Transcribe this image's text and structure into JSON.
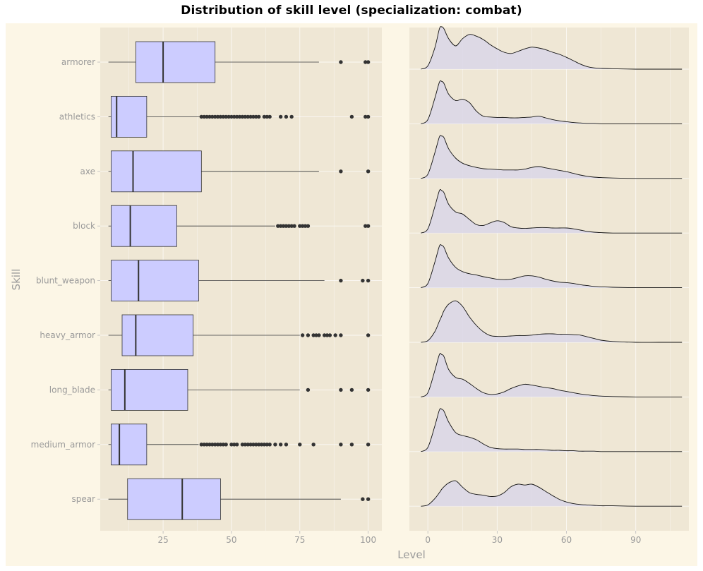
{
  "chart_data": {
    "type": "box+ridgeline",
    "title": "Distribution of skill level (specialization: combat)",
    "xlabel": "Level",
    "ylabel": "Skill",
    "categories": [
      "armorer",
      "athletics",
      "axe",
      "block",
      "blunt_weapon",
      "heavy_armor",
      "long_blade",
      "medium_armor",
      "spear"
    ],
    "boxplot": {
      "xlim": [
        2,
        105
      ],
      "xticks": [
        25,
        50,
        75,
        100
      ],
      "stats": [
        {
          "skill": "armorer",
          "whisker_low": 5,
          "q1": 15,
          "median": 25,
          "q3": 44,
          "whisker_high": 82,
          "outliers": [
            90,
            99,
            100
          ]
        },
        {
          "skill": "athletics",
          "whisker_low": 5,
          "q1": 6,
          "median": 8,
          "q3": 19,
          "whisker_high": 39,
          "outliers": [
            39,
            40,
            41,
            42,
            43,
            44,
            45,
            46,
            47,
            48,
            49,
            50,
            51,
            52,
            53,
            54,
            55,
            56,
            57,
            58,
            59,
            60,
            62,
            63,
            64,
            68,
            70,
            72,
            94,
            99,
            100
          ]
        },
        {
          "skill": "axe",
          "whisker_low": 5,
          "q1": 6,
          "median": 14,
          "q3": 39,
          "whisker_high": 82,
          "outliers": [
            90,
            100
          ]
        },
        {
          "skill": "block",
          "whisker_low": 5,
          "q1": 6,
          "median": 13,
          "q3": 30,
          "whisker_high": 66,
          "outliers": [
            67,
            68,
            69,
            70,
            71,
            72,
            73,
            75,
            76,
            77,
            78,
            99,
            100
          ]
        },
        {
          "skill": "blunt_weapon",
          "whisker_low": 5,
          "q1": 6,
          "median": 16,
          "q3": 38,
          "whisker_high": 84,
          "outliers": [
            90,
            98,
            100
          ]
        },
        {
          "skill": "heavy_armor",
          "whisker_low": 5,
          "q1": 10,
          "median": 15,
          "q3": 36,
          "whisker_high": 75,
          "outliers": [
            76,
            78,
            80,
            81,
            82,
            84,
            85,
            86,
            88,
            90,
            100
          ]
        },
        {
          "skill": "long_blade",
          "whisker_low": 5,
          "q1": 6,
          "median": 11,
          "q3": 34,
          "whisker_high": 75,
          "outliers": [
            78,
            90,
            94,
            100
          ]
        },
        {
          "skill": "medium_armor",
          "whisker_low": 5,
          "q1": 6,
          "median": 9,
          "q3": 19,
          "whisker_high": 38,
          "outliers": [
            39,
            40,
            41,
            42,
            43,
            44,
            45,
            46,
            47,
            48,
            50,
            51,
            52,
            54,
            55,
            56,
            57,
            58,
            59,
            60,
            61,
            62,
            63,
            64,
            66,
            68,
            70,
            75,
            80,
            90,
            94,
            100
          ]
        },
        {
          "skill": "spear",
          "whisker_low": 5,
          "q1": 12,
          "median": 32,
          "q3": 46,
          "whisker_high": 90,
          "outliers": [
            98,
            100
          ]
        }
      ]
    },
    "ridgeline": {
      "xlim": [
        -8,
        113
      ],
      "xticks": [
        0,
        30,
        60,
        90
      ],
      "x": [
        -3,
        0,
        3,
        5,
        6,
        7,
        9,
        12,
        15,
        18,
        21,
        24,
        27,
        30,
        33,
        36,
        39,
        42,
        45,
        48,
        51,
        54,
        57,
        60,
        63,
        66,
        69,
        72,
        75,
        80,
        90,
        100,
        110
      ],
      "series": [
        {
          "name": "armorer",
          "values": [
            0,
            0.08,
            0.5,
            0.95,
            1.0,
            0.95,
            0.72,
            0.55,
            0.72,
            0.82,
            0.78,
            0.7,
            0.58,
            0.48,
            0.4,
            0.37,
            0.42,
            0.48,
            0.52,
            0.5,
            0.46,
            0.4,
            0.35,
            0.28,
            0.2,
            0.12,
            0.06,
            0.03,
            0.02,
            0.01,
            0,
            0,
            0
          ]
        },
        {
          "name": "athletics",
          "values": [
            0,
            0.1,
            0.6,
            0.98,
            1.0,
            0.95,
            0.7,
            0.55,
            0.58,
            0.5,
            0.3,
            0.18,
            0.16,
            0.15,
            0.15,
            0.14,
            0.14,
            0.15,
            0.16,
            0.18,
            0.14,
            0.1,
            0.07,
            0.05,
            0.03,
            0.02,
            0.01,
            0.01,
            0,
            0,
            0,
            0,
            0
          ]
        },
        {
          "name": "axe",
          "values": [
            0,
            0.1,
            0.6,
            0.98,
            1.0,
            0.96,
            0.7,
            0.48,
            0.36,
            0.3,
            0.26,
            0.23,
            0.22,
            0.21,
            0.2,
            0.2,
            0.2,
            0.22,
            0.26,
            0.28,
            0.25,
            0.22,
            0.19,
            0.16,
            0.12,
            0.08,
            0.05,
            0.03,
            0.02,
            0.01,
            0,
            0,
            0
          ]
        },
        {
          "name": "block",
          "values": [
            0,
            0.1,
            0.62,
            1.0,
            1.0,
            0.95,
            0.68,
            0.5,
            0.45,
            0.32,
            0.2,
            0.18,
            0.24,
            0.29,
            0.25,
            0.15,
            0.12,
            0.11,
            0.12,
            0.13,
            0.13,
            0.12,
            0.12,
            0.12,
            0.1,
            0.07,
            0.04,
            0.02,
            0.01,
            0,
            0,
            0,
            0
          ]
        },
        {
          "name": "blunt_weapon",
          "values": [
            0,
            0.1,
            0.6,
            0.98,
            1.0,
            0.95,
            0.7,
            0.48,
            0.38,
            0.33,
            0.3,
            0.26,
            0.23,
            0.2,
            0.19,
            0.2,
            0.24,
            0.28,
            0.28,
            0.25,
            0.2,
            0.16,
            0.13,
            0.12,
            0.1,
            0.07,
            0.05,
            0.03,
            0.02,
            0.01,
            0,
            0,
            0
          ]
        },
        {
          "name": "heavy_armor",
          "values": [
            0,
            0.04,
            0.25,
            0.5,
            0.62,
            0.75,
            0.9,
            0.98,
            0.85,
            0.6,
            0.4,
            0.25,
            0.16,
            0.14,
            0.14,
            0.15,
            0.16,
            0.16,
            0.17,
            0.19,
            0.2,
            0.2,
            0.19,
            0.19,
            0.18,
            0.17,
            0.13,
            0.09,
            0.05,
            0.02,
            0,
            0,
            0
          ]
        },
        {
          "name": "long_blade",
          "values": [
            0,
            0.1,
            0.62,
            1.0,
            1.0,
            0.95,
            0.65,
            0.46,
            0.42,
            0.32,
            0.2,
            0.1,
            0.06,
            0.07,
            0.12,
            0.2,
            0.26,
            0.3,
            0.28,
            0.25,
            0.22,
            0.2,
            0.16,
            0.13,
            0.1,
            0.07,
            0.05,
            0.03,
            0.02,
            0.01,
            0,
            0,
            0
          ]
        },
        {
          "name": "medium_armor",
          "values": [
            0,
            0.1,
            0.6,
            0.98,
            1.0,
            0.95,
            0.7,
            0.45,
            0.38,
            0.34,
            0.28,
            0.18,
            0.1,
            0.07,
            0.06,
            0.06,
            0.06,
            0.05,
            0.05,
            0.05,
            0.04,
            0.03,
            0.03,
            0.02,
            0.02,
            0.01,
            0.01,
            0.01,
            0,
            0,
            0,
            0,
            0
          ]
        },
        {
          "name": "spear",
          "values": [
            0,
            0.03,
            0.18,
            0.32,
            0.4,
            0.46,
            0.55,
            0.6,
            0.45,
            0.32,
            0.28,
            0.26,
            0.23,
            0.24,
            0.32,
            0.46,
            0.52,
            0.5,
            0.52,
            0.45,
            0.35,
            0.25,
            0.16,
            0.1,
            0.06,
            0.04,
            0.03,
            0.02,
            0.01,
            0.01,
            0,
            0,
            0
          ]
        }
      ]
    }
  }
}
